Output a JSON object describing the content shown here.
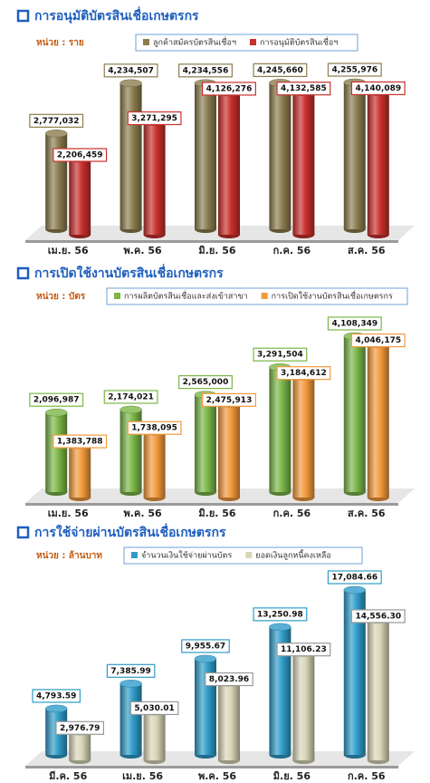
{
  "chart_data": [
    {
      "type": "bar",
      "title": "การอนุมัติบัตรสินเชื่อเกษตรกร",
      "unit": "หน่วย : ราย",
      "categories": [
        "เม.ย. 56",
        "พ.ค. 56",
        "มิ.ย. 56",
        "ก.ค. 56",
        "ส.ค. 56"
      ],
      "series": [
        {
          "name": "ลูกค้าสมัครบัตรสินเชื่อฯ",
          "color": "#8b7d4f",
          "values": [
            2777032,
            4234507,
            4234556,
            4245660,
            4255976
          ],
          "value_labels": [
            "2,777,032",
            "4,234,507",
            "4,234,556",
            "4,245,660",
            "4,255,976"
          ]
        },
        {
          "name": "การอนุมัติบัตรสินเชื่อฯ",
          "color": "#c8302c",
          "values": [
            2206459,
            3271295,
            4126276,
            4132585,
            4140089
          ],
          "value_labels": [
            "2,206,459",
            "3,271,295",
            "4,126,276",
            "4,132,585",
            "4,140,089"
          ]
        }
      ]
    },
    {
      "type": "bar",
      "title": "การเปิดใช้งานบัตรสินเชื่อเกษตรกร",
      "unit": "หน่วย : บัตร",
      "categories": [
        "เม.ย. 56",
        "พ.ค. 56",
        "มิ.ย. 56",
        "ก.ค. 56",
        "ส.ค. 56"
      ],
      "series": [
        {
          "name": "การผลิตบัตรสินเชื่อและส่งเข้าสาขา",
          "color": "#7ab648",
          "values": [
            2096987,
            2174021,
            2565000,
            3291504,
            4108349
          ],
          "value_labels": [
            "2,096,987",
            "2,174,021",
            "2,565,000",
            "3,291,504",
            "4,108,349"
          ]
        },
        {
          "name": "การเปิดใช้งานบัตรสินเชื่อเกษตรกร",
          "color": "#f39a3c",
          "values": [
            1383788,
            1738095,
            2475913,
            3184612,
            4046175
          ],
          "value_labels": [
            "1,383,788",
            "1,738,095",
            "2,475,913",
            "3,184,612",
            "4,046,175"
          ]
        }
      ]
    },
    {
      "type": "bar",
      "title": "การใช้จ่ายผ่านบัตรสินเชื่อเกษตรกร",
      "unit": "หน่วย : ล้านบาท",
      "categories": [
        "มี.ค. 56",
        "เม.ย. 56",
        "พ.ค. 56",
        "มิ.ย. 56",
        "ก.ค. 56"
      ],
      "series": [
        {
          "name": "จำนวนเงินใช้จ่ายผ่านบัตร",
          "color": "#2f9cc9",
          "values": [
            4793.59,
            7385.99,
            9955.67,
            13250.98,
            17084.66
          ],
          "value_labels": [
            "4,793.59",
            "7,385.99",
            "9,955.67",
            "13,250.98",
            "17,084.66"
          ]
        },
        {
          "name": "ยอดเงินลูกหนี้คงเหลือ",
          "color": "#d9d5b8",
          "values": [
            2976.79,
            5030.01,
            8023.96,
            11106.23,
            14556.3
          ],
          "value_labels": [
            "2,976.79",
            "5,030.01",
            "8,023.96",
            "11,106.23",
            "14,556.30"
          ]
        }
      ]
    }
  ]
}
